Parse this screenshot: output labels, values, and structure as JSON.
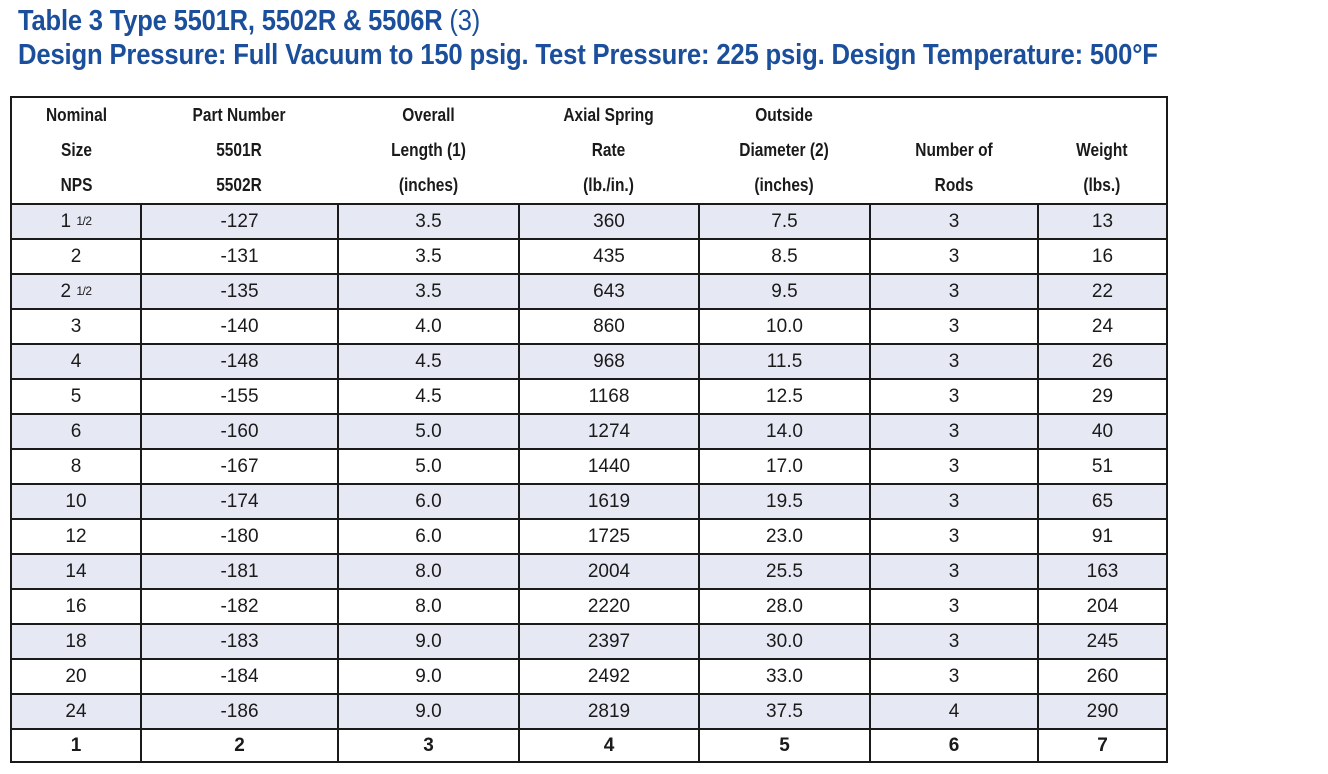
{
  "title": {
    "main": "Table 3 Type 5501R, 5502R & 5506R",
    "suffix": " (3)",
    "subtitle": "Design Pressure: Full Vacuum to 150 psig. Test Pressure: 225 psig. Design Temperature: 500°F"
  },
  "headers": [
    {
      "lines": [
        "Nominal",
        "Size",
        "NPS"
      ]
    },
    {
      "lines": [
        "Part Number",
        "5501R",
        "5502R"
      ]
    },
    {
      "lines": [
        "Overall",
        "Length (1)",
        "(inches)"
      ]
    },
    {
      "lines": [
        "Axial Spring",
        "Rate",
        "(lb./in.)"
      ]
    },
    {
      "lines": [
        "Outside",
        "Diameter (2)",
        "(inches)"
      ]
    },
    {
      "lines": [
        "Number of",
        "Rods"
      ]
    },
    {
      "lines": [
        "Weight",
        "(lbs.)"
      ]
    }
  ],
  "rows": [
    {
      "size": "1",
      "size_frac": "1/2",
      "part": "-127",
      "length": "3.5",
      "rate": "360",
      "diameter": "7.5",
      "rods": "3",
      "weight": "13"
    },
    {
      "size": "2",
      "size_frac": "",
      "part": "-131",
      "length": "3.5",
      "rate": "435",
      "diameter": "8.5",
      "rods": "3",
      "weight": "16"
    },
    {
      "size": "2",
      "size_frac": "1/2",
      "part": "-135",
      "length": "3.5",
      "rate": "643",
      "diameter": "9.5",
      "rods": "3",
      "weight": "22"
    },
    {
      "size": "3",
      "size_frac": "",
      "part": "-140",
      "length": "4.0",
      "rate": "860",
      "diameter": "10.0",
      "rods": "3",
      "weight": "24"
    },
    {
      "size": "4",
      "size_frac": "",
      "part": "-148",
      "length": "4.5",
      "rate": "968",
      "diameter": "11.5",
      "rods": "3",
      "weight": "26"
    },
    {
      "size": "5",
      "size_frac": "",
      "part": "-155",
      "length": "4.5",
      "rate": "1168",
      "diameter": "12.5",
      "rods": "3",
      "weight": "29"
    },
    {
      "size": "6",
      "size_frac": "",
      "part": "-160",
      "length": "5.0",
      "rate": "1274",
      "diameter": "14.0",
      "rods": "3",
      "weight": "40"
    },
    {
      "size": "8",
      "size_frac": "",
      "part": "-167",
      "length": "5.0",
      "rate": "1440",
      "diameter": "17.0",
      "rods": "3",
      "weight": "51"
    },
    {
      "size": "10",
      "size_frac": "",
      "part": "-174",
      "length": "6.0",
      "rate": "1619",
      "diameter": "19.5",
      "rods": "3",
      "weight": "65"
    },
    {
      "size": "12",
      "size_frac": "",
      "part": "-180",
      "length": "6.0",
      "rate": "1725",
      "diameter": "23.0",
      "rods": "3",
      "weight": "91"
    },
    {
      "size": "14",
      "size_frac": "",
      "part": "-181",
      "length": "8.0",
      "rate": "2004",
      "diameter": "25.5",
      "rods": "3",
      "weight": "163"
    },
    {
      "size": "16",
      "size_frac": "",
      "part": "-182",
      "length": "8.0",
      "rate": "2220",
      "diameter": "28.0",
      "rods": "3",
      "weight": "204"
    },
    {
      "size": "18",
      "size_frac": "",
      "part": "-183",
      "length": "9.0",
      "rate": "2397",
      "diameter": "30.0",
      "rods": "3",
      "weight": "245"
    },
    {
      "size": "20",
      "size_frac": "",
      "part": "-184",
      "length": "9.0",
      "rate": "2492",
      "diameter": "33.0",
      "rods": "3",
      "weight": "260"
    },
    {
      "size": "24",
      "size_frac": "",
      "part": "-186",
      "length": "9.0",
      "rate": "2819",
      "diameter": "37.5",
      "rods": "4",
      "weight": "290"
    }
  ],
  "column_numbers": [
    "1",
    "2",
    "3",
    "4",
    "5",
    "6",
    "7"
  ],
  "colors": {
    "title": "#1b4f9c",
    "row_shade": "#e6e9f4",
    "border": "#1a1a1a"
  }
}
